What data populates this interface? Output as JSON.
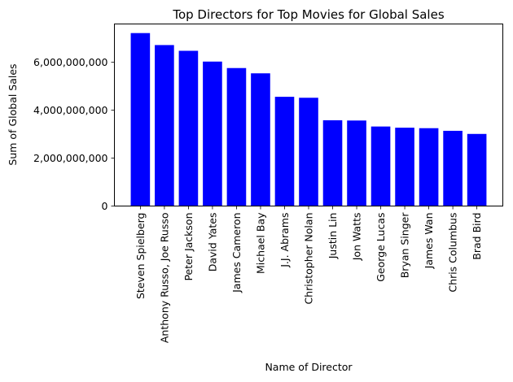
{
  "chart_data": {
    "type": "bar",
    "title": "Top Directors for Top Movies for Global Sales",
    "xlabel": "Name of Director",
    "ylabel": "Sum of Global Sales",
    "categories": [
      "Steven Spielberg",
      "Anthony Russo, Joe Russo",
      "Peter Jackson",
      "David Yates",
      "James Cameron",
      "Michael Bay",
      "J.J. Abrams",
      "Christopher Nolan",
      "Justin Lin",
      "Jon Watts",
      "George Lucas",
      "Bryan Singer",
      "James Wan",
      "Chris Columbus",
      "Brad Bird"
    ],
    "values": [
      7220000000,
      6720000000,
      6480000000,
      6030000000,
      5760000000,
      5540000000,
      4560000000,
      4520000000,
      3580000000,
      3570000000,
      3320000000,
      3270000000,
      3250000000,
      3140000000,
      3010000000
    ],
    "ylim": [
      0,
      7600000000
    ],
    "yticks": [
      0,
      2000000000,
      4000000000,
      6000000000
    ],
    "ytick_labels": [
      "0",
      "2,000,000,000",
      "4,000,000,000",
      "6,000,000,000"
    ],
    "bar_color": "#0000ff",
    "grid": false,
    "legend": "none"
  }
}
